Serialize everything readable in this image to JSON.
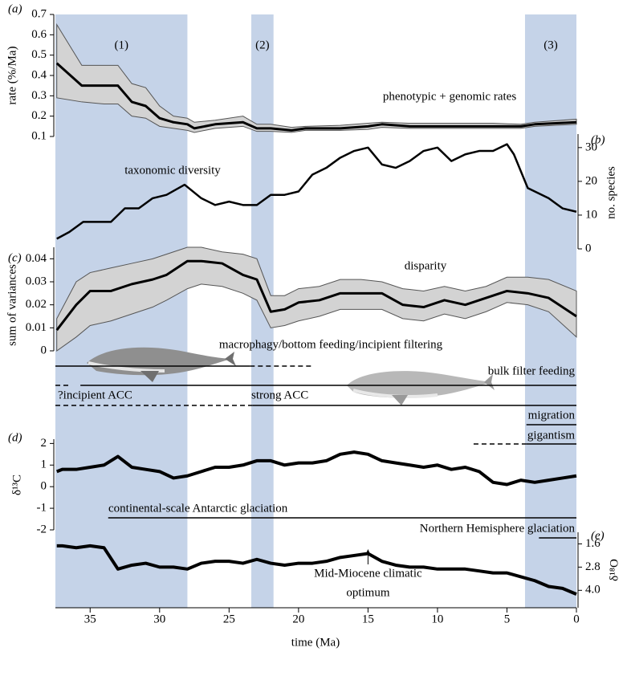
{
  "chart_data": {
    "type": "line",
    "xlabel": "time (Ma)",
    "xlim": [
      37.5,
      0
    ],
    "xticks": [
      35,
      30,
      25,
      20,
      15,
      10,
      5,
      0
    ],
    "shaded_color": "#c5d3e8",
    "shaded_periods": [
      {
        "label": "(1)",
        "start": 37.5,
        "end": 28
      },
      {
        "label": "(2)",
        "start": 23.4,
        "end": 21.8
      },
      {
        "label": "(3)",
        "start": 3.7,
        "end": 0
      }
    ],
    "panels": [
      {
        "type": "band",
        "label": "(a)",
        "ylabel": "rate (%/Ma)",
        "annotation": "phenotypic + genomic rates",
        "color": "#000000",
        "band_color": "#d3d3d3",
        "ylim": [
          0.1,
          0.7
        ],
        "yticks": [
          0.1,
          0.2,
          0.3,
          0.4,
          0.5,
          0.6,
          0.7
        ],
        "x": [
          37.4,
          35.6,
          34,
          33,
          32,
          31,
          30,
          29,
          28,
          27.5,
          26,
          24,
          23,
          22,
          20.5,
          19.5,
          17,
          15,
          14,
          12,
          9,
          6,
          4,
          3,
          0
        ],
        "values": [
          0.46,
          0.35,
          0.35,
          0.35,
          0.27,
          0.25,
          0.19,
          0.17,
          0.16,
          0.14,
          0.16,
          0.17,
          0.14,
          0.14,
          0.13,
          0.14,
          0.14,
          0.15,
          0.16,
          0.15,
          0.15,
          0.15,
          0.15,
          0.16,
          0.17
        ],
        "upper": [
          0.65,
          0.45,
          0.45,
          0.45,
          0.36,
          0.34,
          0.25,
          0.2,
          0.19,
          0.17,
          0.18,
          0.2,
          0.16,
          0.16,
          0.145,
          0.15,
          0.155,
          0.165,
          0.17,
          0.165,
          0.165,
          0.165,
          0.16,
          0.17,
          0.185
        ],
        "lower": [
          0.29,
          0.27,
          0.26,
          0.26,
          0.2,
          0.19,
          0.15,
          0.14,
          0.13,
          0.12,
          0.14,
          0.15,
          0.125,
          0.125,
          0.12,
          0.13,
          0.13,
          0.135,
          0.145,
          0.14,
          0.14,
          0.14,
          0.14,
          0.15,
          0.16
        ]
      },
      {
        "type": "line",
        "label": "(b)",
        "ylabel": "no. species",
        "annotation": "taxonomic diversity",
        "color": "#000000",
        "axis_side": "right",
        "ylim": [
          0,
          34
        ],
        "yticks": [
          0,
          10,
          20,
          30
        ],
        "x": [
          37.4,
          36.5,
          35.5,
          34.5,
          33.5,
          32.5,
          31.5,
          30.5,
          29.5,
          28.2,
          27,
          26,
          25,
          24,
          23,
          22,
          21,
          20,
          19,
          18,
          17,
          16,
          15,
          14,
          13,
          12,
          11,
          10,
          9,
          8,
          7,
          6,
          5,
          4.5,
          3.5,
          2,
          1,
          0
        ],
        "values": [
          3,
          5,
          8,
          8,
          8,
          12,
          12,
          15,
          16,
          19,
          15,
          13,
          14,
          13,
          13,
          16,
          16,
          17,
          22,
          24,
          27,
          29,
          30,
          25,
          24,
          26,
          29,
          30,
          26,
          28,
          29,
          29,
          31,
          28,
          18,
          15,
          12,
          11
        ]
      },
      {
        "type": "band",
        "label": "(c)",
        "ylabel": "sum of variances",
        "annotation": "disparity",
        "color": "#000000",
        "band_color": "#d3d3d3",
        "ylim": [
          0,
          0.045
        ],
        "yticks": [
          0,
          0.01,
          0.02,
          0.03,
          0.04
        ],
        "x": [
          37.4,
          36,
          35,
          33.5,
          32,
          30.5,
          29.5,
          28,
          27,
          25.5,
          24,
          23,
          22,
          21,
          20,
          18.5,
          17,
          15.5,
          14,
          12.5,
          11,
          9.5,
          8,
          6.5,
          5,
          3.5,
          2,
          0
        ],
        "values": [
          0.009,
          0.02,
          0.026,
          0.026,
          0.029,
          0.031,
          0.033,
          0.039,
          0.039,
          0.038,
          0.033,
          0.031,
          0.017,
          0.018,
          0.021,
          0.022,
          0.025,
          0.025,
          0.025,
          0.02,
          0.019,
          0.022,
          0.02,
          0.023,
          0.026,
          0.025,
          0.023,
          0.015
        ],
        "upper": [
          0.014,
          0.03,
          0.034,
          0.036,
          0.038,
          0.04,
          0.042,
          0.045,
          0.045,
          0.043,
          0.042,
          0.04,
          0.024,
          0.024,
          0.027,
          0.028,
          0.031,
          0.031,
          0.03,
          0.027,
          0.026,
          0.028,
          0.026,
          0.028,
          0.032,
          0.032,
          0.031,
          0.026
        ],
        "lower": [
          0,
          0.006,
          0.011,
          0.013,
          0.016,
          0.019,
          0.022,
          0.027,
          0.029,
          0.028,
          0.025,
          0.022,
          0.01,
          0.011,
          0.013,
          0.015,
          0.018,
          0.018,
          0.018,
          0.014,
          0.013,
          0.016,
          0.014,
          0.017,
          0.021,
          0.02,
          0.017,
          0.006
        ]
      },
      {
        "type": "line",
        "label": "(d)",
        "ylabel": "δ¹³C",
        "color": "#000000",
        "ylim": [
          -2,
          2.2
        ],
        "yticks": [
          -2,
          -1,
          0,
          1,
          2
        ],
        "x": [
          37.4,
          37,
          36,
          35,
          34,
          33,
          32,
          31,
          30,
          29,
          28,
          27,
          26,
          25,
          24,
          23,
          22,
          21,
          20,
          19,
          18,
          17,
          16,
          15,
          14,
          13,
          12,
          11,
          10,
          9,
          8,
          7,
          6,
          5,
          4,
          3,
          2,
          1,
          0
        ],
        "values": [
          0.7,
          0.8,
          0.8,
          0.9,
          1.0,
          1.4,
          0.9,
          0.8,
          0.7,
          0.4,
          0.5,
          0.7,
          0.9,
          0.9,
          1.0,
          1.2,
          1.2,
          1.0,
          1.1,
          1.1,
          1.2,
          1.5,
          1.6,
          1.5,
          1.2,
          1.1,
          1.0,
          0.9,
          1.0,
          0.8,
          0.9,
          0.7,
          0.2,
          0.1,
          0.3,
          0.2,
          0.3,
          0.4,
          0.5
        ]
      },
      {
        "type": "line",
        "label": "(e)",
        "ylabel": "δ¹⁸O",
        "color": "#000000",
        "axis_side": "right",
        "inverted": true,
        "ylim": [
          1.0,
          4.9
        ],
        "yticks": [
          1.6,
          2.8,
          {
            "value": 4.0,
            "label": "4.0"
          }
        ],
        "x": [
          37.4,
          37,
          36,
          35,
          34,
          33,
          32,
          31,
          30,
          29,
          28,
          27,
          26,
          25,
          24,
          23,
          22,
          21,
          20,
          19,
          18,
          17,
          16,
          15,
          14,
          13,
          12,
          11,
          10,
          9,
          8,
          7,
          6,
          5,
          4,
          3,
          2,
          1,
          0
        ],
        "values": [
          1.7,
          1.7,
          1.8,
          1.7,
          1.8,
          2.9,
          2.7,
          2.6,
          2.8,
          2.8,
          2.9,
          2.6,
          2.5,
          2.5,
          2.6,
          2.4,
          2.6,
          2.7,
          2.6,
          2.6,
          2.5,
          2.3,
          2.2,
          2.1,
          2.5,
          2.7,
          2.8,
          2.8,
          2.9,
          2.9,
          2.9,
          3.0,
          3.1,
          3.1,
          3.3,
          3.5,
          3.8,
          3.9,
          4.2
        ]
      }
    ],
    "events": [
      {
        "label": "macrophagy/bottom feeding/incipient filtering",
        "solid": [
          37.5,
          23.5
        ],
        "dashed": [
          23.5,
          19
        ]
      },
      {
        "label": "bulk filter feeding",
        "dashed": [
          37.5,
          36.5
        ],
        "solid": [
          35.7,
          0
        ]
      },
      {
        "label": "?incipient ACC",
        "dashed": [
          37.5,
          23.3
        ]
      },
      {
        "label": "strong ACC",
        "solid": [
          23.3,
          0
        ]
      },
      {
        "label": "migration",
        "solid": [
          3.6,
          0
        ]
      },
      {
        "label": "gigantism",
        "dashed": [
          7.4,
          3.6
        ],
        "solid": [
          3.6,
          0
        ]
      },
      {
        "label": "continental-scale Antarctic glaciation",
        "solid": [
          33.7,
          0
        ]
      },
      {
        "label": "Northern Hemisphere glaciation",
        "solid": [
          2.7,
          0
        ]
      }
    ],
    "arrow_note": {
      "lines": [
        "Mid-Miocene climatic",
        "optimum"
      ],
      "x": 15
    }
  }
}
